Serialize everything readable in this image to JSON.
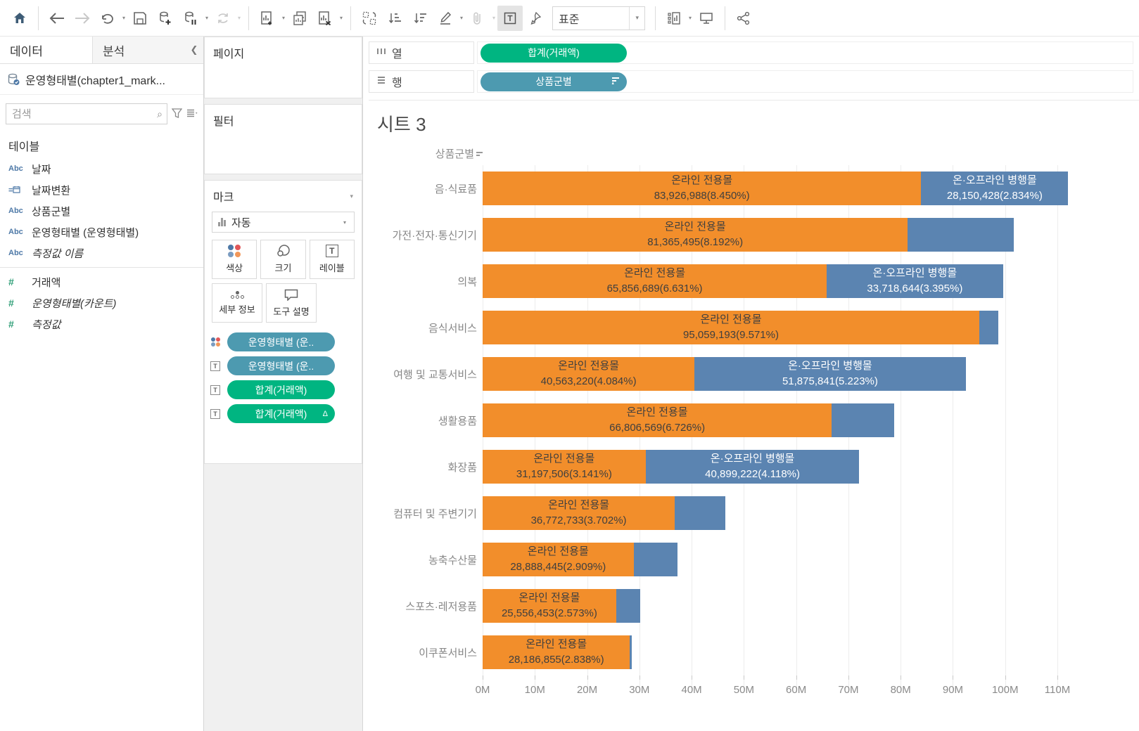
{
  "toolbar": {
    "fit_selector": "표준",
    "icons": [
      "home-icon",
      "back-icon",
      "forward-icon",
      "replay-icon",
      "save-icon",
      "add-data-icon",
      "pause-updates-icon",
      "refresh-icon",
      "new-worksheet-icon",
      "duplicate-icon",
      "clear-sheet-icon",
      "swap-rows-columns-icon",
      "sort-ascending-icon",
      "sort-descending-icon",
      "highlight-icon",
      "group-icon",
      "show-mark-labels-icon",
      "fix-axes-icon",
      "show-hide-cards-icon",
      "presentation-mode-icon",
      "share-icon"
    ]
  },
  "sidebar": {
    "tabs": {
      "data": "데이터",
      "analytics": "분석"
    },
    "datasource": "운영형태별(chapter1_mark...",
    "search_placeholder": "검색",
    "section_title": "테이블",
    "fields": [
      {
        "icon": "abc",
        "label": "날짜",
        "italic": false
      },
      {
        "icon": "date-calc",
        "label": "날짜변환",
        "italic": false
      },
      {
        "icon": "abc",
        "label": "상품군별",
        "italic": false
      },
      {
        "icon": "abc",
        "label": "운영형태별 (운영형태별)",
        "italic": false
      },
      {
        "icon": "abc",
        "label": "측정값 이름",
        "italic": true
      },
      {
        "icon": "num",
        "label": "거래액",
        "italic": false,
        "divider_before": true
      },
      {
        "icon": "num",
        "label": "운영형태별(카운트)",
        "italic": true
      },
      {
        "icon": "num",
        "label": "측정값",
        "italic": true
      }
    ]
  },
  "cards": {
    "pages_title": "페이지",
    "filters_title": "필터",
    "marks": {
      "title": "마크",
      "mark_type": "자동",
      "buttons": [
        "색상",
        "크기",
        "레이블",
        "세부 정보",
        "도구 설명"
      ],
      "pills": [
        {
          "label": "운영형태별 (운..",
          "kind": "dim",
          "icon": "color-dots"
        },
        {
          "label": "운영형태별 (운..",
          "kind": "dim",
          "icon": "text"
        },
        {
          "label": "합계(거래액)",
          "kind": "meas",
          "icon": "text"
        },
        {
          "label": "합계(거래액)",
          "kind": "meas",
          "icon": "text",
          "badge": "Δ"
        }
      ]
    }
  },
  "shelves": {
    "columns_label": "열",
    "columns_pill": "합계(거래액)",
    "rows_label": "행",
    "rows_pill": "상품군별"
  },
  "sheet": {
    "title": "시트 3",
    "column_header": "상품군별"
  },
  "colors": {
    "bar_orange": "#f28e2b",
    "bar_blue": "#5b84b1",
    "pill_dimension": "#4d9ab0",
    "pill_measure": "#00b581"
  },
  "chart_data": {
    "type": "bar",
    "orientation": "horizontal",
    "stacked": true,
    "series_names": [
      "온라인 전용몰",
      "온·오프라인 병행몰"
    ],
    "series_colors": [
      "#f28e2b",
      "#5b84b1"
    ],
    "xlabel": "",
    "ylabel": "상품군별",
    "axis_unit": "M",
    "axis_max_extent": 124,
    "ticks": [
      {
        "label": "0M",
        "value": 0
      },
      {
        "label": "10M",
        "value": 10
      },
      {
        "label": "20M",
        "value": 20
      },
      {
        "label": "30M",
        "value": 30
      },
      {
        "label": "40M",
        "value": 40
      },
      {
        "label": "50M",
        "value": 50
      },
      {
        "label": "60M",
        "value": 60
      },
      {
        "label": "70M",
        "value": 70
      },
      {
        "label": "80M",
        "value": 80
      },
      {
        "label": "90M",
        "value": 90
      },
      {
        "label": "100M",
        "value": 100
      },
      {
        "label": "110M",
        "value": 110
      }
    ],
    "rows": [
      {
        "category": "음·식료품",
        "segments": [
          {
            "series": "온라인 전용몰",
            "value": 83926988,
            "label": "83,926,988(8.450%)",
            "labeled": true
          },
          {
            "series": "온·오프라인 병행몰",
            "value": 28150428,
            "label": "28,150,428(2.834%)",
            "labeled": true
          }
        ]
      },
      {
        "category": "가전·전자·통신기기",
        "segments": [
          {
            "series": "온라인 전용몰",
            "value": 81365495,
            "label": "81,365,495(8.192%)",
            "labeled": true
          },
          {
            "series": "온·오프라인 병행몰",
            "value": 20300000,
            "labeled": false,
            "estimated": true
          }
        ]
      },
      {
        "category": "의복",
        "segments": [
          {
            "series": "온라인 전용몰",
            "value": 65856689,
            "label": "65,856,689(6.631%)",
            "labeled": true
          },
          {
            "series": "온·오프라인 병행몰",
            "value": 33718644,
            "label": "33,718,644(3.395%)",
            "labeled": true
          }
        ]
      },
      {
        "category": "음식서비스",
        "segments": [
          {
            "series": "온라인 전용몰",
            "value": 95059193,
            "label": "95,059,193(9.571%)",
            "labeled": true
          },
          {
            "series": "온·오프라인 병행몰",
            "value": 3600000,
            "labeled": false,
            "estimated": true
          }
        ]
      },
      {
        "category": "여행 및 교통서비스",
        "segments": [
          {
            "series": "온라인 전용몰",
            "value": 40563220,
            "label": "40,563,220(4.084%)",
            "labeled": true
          },
          {
            "series": "온·오프라인 병행몰",
            "value": 51875841,
            "label": "51,875,841(5.223%)",
            "labeled": true
          }
        ]
      },
      {
        "category": "생활용품",
        "segments": [
          {
            "series": "온라인 전용몰",
            "value": 66806569,
            "label": "66,806,569(6.726%)",
            "labeled": true
          },
          {
            "series": "온·오프라인 병행몰",
            "value": 11900000,
            "labeled": false,
            "estimated": true
          }
        ]
      },
      {
        "category": "화장품",
        "segments": [
          {
            "series": "온라인 전용몰",
            "value": 31197506,
            "label": "31,197,506(3.141%)",
            "labeled": true
          },
          {
            "series": "온·오프라인 병행몰",
            "value": 40899222,
            "label": "40,899,222(4.118%)",
            "labeled": true
          }
        ]
      },
      {
        "category": "컴퓨터 및 주변기기",
        "segments": [
          {
            "series": "온라인 전용몰",
            "value": 36772733,
            "label": "36,772,733(3.702%)",
            "labeled": true
          },
          {
            "series": "온·오프라인 병행몰",
            "value": 9700000,
            "labeled": false,
            "estimated": true
          }
        ]
      },
      {
        "category": "농축수산물",
        "segments": [
          {
            "series": "온라인 전용몰",
            "value": 28888445,
            "label": "28,888,445(2.909%)",
            "labeled": true
          },
          {
            "series": "온·오프라인 병행몰",
            "value": 8400000,
            "labeled": false,
            "estimated": true
          }
        ]
      },
      {
        "category": "스포츠·레저용품",
        "segments": [
          {
            "series": "온라인 전용몰",
            "value": 25556453,
            "label": "25,556,453(2.573%)",
            "labeled": true
          },
          {
            "series": "온·오프라인 병행몰",
            "value": 4600000,
            "labeled": false,
            "estimated": true
          }
        ]
      },
      {
        "category": "이쿠폰서비스",
        "segments": [
          {
            "series": "온라인 전용몰",
            "value": 28186855,
            "label": "28,186,855(2.838%)",
            "labeled": true
          },
          {
            "series": "온·오프라인 병행몰",
            "value": 300000,
            "labeled": false,
            "estimated": true
          }
        ]
      }
    ]
  }
}
